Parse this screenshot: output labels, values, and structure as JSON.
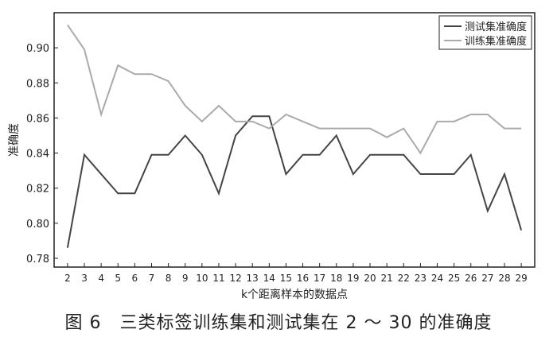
{
  "chart_data": {
    "type": "line",
    "x": [
      2,
      3,
      4,
      5,
      6,
      7,
      8,
      9,
      10,
      11,
      12,
      13,
      14,
      15,
      16,
      17,
      18,
      19,
      20,
      21,
      22,
      23,
      24,
      25,
      26,
      27,
      28,
      29
    ],
    "series": [
      {
        "name": "测试集准确度",
        "color": "#444444",
        "values": [
          0.786,
          0.839,
          0.828,
          0.817,
          0.817,
          0.839,
          0.839,
          0.85,
          0.839,
          0.817,
          0.85,
          0.861,
          0.861,
          0.828,
          0.839,
          0.839,
          0.85,
          0.828,
          0.839,
          0.839,
          0.839,
          0.828,
          0.828,
          0.828,
          0.839,
          0.807,
          0.828,
          0.796
        ]
      },
      {
        "name": "训练集准确度",
        "color": "#aaaaaa",
        "values": [
          0.913,
          0.899,
          0.862,
          0.89,
          0.885,
          0.885,
          0.881,
          0.867,
          0.858,
          0.867,
          0.858,
          0.858,
          0.854,
          0.862,
          0.858,
          0.854,
          0.854,
          0.854,
          0.854,
          0.849,
          0.854,
          0.84,
          0.858,
          0.858,
          0.862,
          0.862,
          0.854,
          0.854
        ]
      }
    ],
    "xlabel": "k个距离样本的数据点",
    "ylabel": "准确度",
    "ylim": [
      0.775,
      0.92
    ],
    "yticks": [
      0.78,
      0.8,
      0.82,
      0.84,
      0.86,
      0.88,
      0.9
    ],
    "ytick_labels": [
      "0.78",
      "0.80",
      "0.82",
      "0.84",
      "0.86",
      "0.88",
      "0.90"
    ],
    "xticks": [
      2,
      3,
      4,
      5,
      6,
      7,
      8,
      9,
      10,
      11,
      12,
      13,
      14,
      15,
      16,
      17,
      18,
      19,
      20,
      21,
      22,
      23,
      24,
      25,
      26,
      27,
      28,
      29
    ],
    "grid": false,
    "legend": "top-right"
  },
  "caption": "图 6　三类标签训练集和测试集在 2 ～ 30 的准确度"
}
